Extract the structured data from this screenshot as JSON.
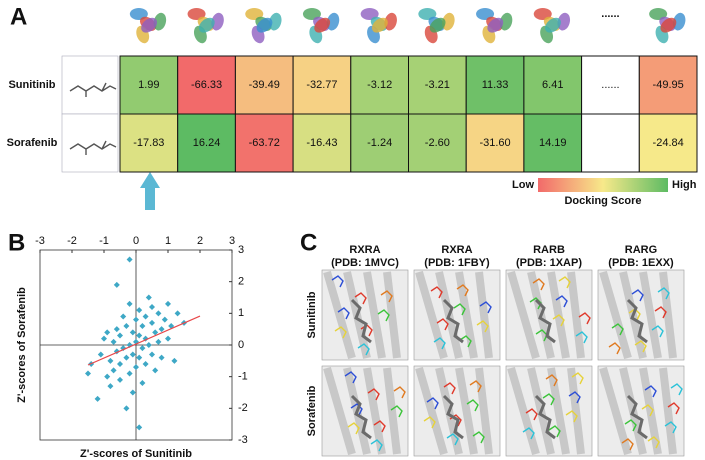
{
  "panel_a": {
    "label": "A",
    "columns_ellipsis": "......",
    "rows": [
      {
        "name": "Sunitinib",
        "cells": [
          "1.99",
          "-66.33",
          "-39.49",
          "-32.77",
          "-3.12",
          "-3.21",
          "11.33",
          "6.41",
          "......",
          "-49.95"
        ]
      },
      {
        "name": "Sorafenib",
        "cells": [
          "-17.83",
          "16.24",
          "-63.72",
          "-16.43",
          "-1.24",
          "-2.60",
          "-31.60",
          "14.19",
          "",
          "-24.84"
        ]
      }
    ],
    "legend": {
      "low": "Low",
      "high": "High",
      "title": "Docking Score"
    }
  },
  "chart_data": {
    "type": "scatter",
    "label": "B",
    "x_label": "Z'-scores of Sunitinib",
    "y_label": "Z'-scores of Sorafenib",
    "color": "#3ea8c6",
    "trend_color": "#e8474a",
    "xlim": [
      -3,
      3
    ],
    "ylim": [
      -3,
      3
    ],
    "xticks": [
      -3,
      -2,
      -1,
      0,
      1,
      2,
      3
    ],
    "yticks": [
      -3,
      -2,
      -1,
      0,
      1,
      2,
      3
    ],
    "x": [
      -1.5,
      -1.4,
      -1.2,
      -1.1,
      -1.0,
      -0.9,
      -0.9,
      -0.8,
      -0.8,
      -0.7,
      -0.7,
      -0.6,
      -0.6,
      -0.5,
      -0.5,
      -0.5,
      -0.4,
      -0.4,
      -0.3,
      -0.3,
      -0.3,
      -0.2,
      -0.2,
      -0.2,
      -0.1,
      -0.1,
      -0.1,
      0,
      0,
      0,
      0.1,
      0.1,
      0.1,
      0.2,
      0.2,
      0.2,
      0.3,
      0.3,
      0.3,
      0.4,
      0.4,
      0.5,
      0.5,
      0.5,
      0.6,
      0.6,
      0.7,
      0.7,
      0.8,
      0.8,
      0.9,
      1.0,
      1.0,
      1.1,
      1.2,
      1.3,
      1.5,
      -0.2,
      0.1,
      -0.6
    ],
    "values": [
      -0.9,
      -0.6,
      -1.7,
      -0.3,
      0.2,
      -1.0,
      0.4,
      -0.5,
      -1.3,
      0.1,
      -0.8,
      0.5,
      -0.2,
      -1.1,
      0.3,
      -0.6,
      0.9,
      -0.1,
      -2.0,
      0.6,
      -0.4,
      1.3,
      0,
      -0.9,
      0.4,
      -0.3,
      -1.5,
      0.8,
      0.1,
      -0.7,
      1.1,
      0.3,
      -0.4,
      0.6,
      -0.1,
      -1.2,
      0.9,
      0.2,
      -0.6,
      1.5,
      0,
      0.7,
      -0.3,
      1.2,
      0.4,
      -0.8,
      1.0,
      0.1,
      0.5,
      -0.4,
      0.8,
      1.3,
      0.2,
      0.6,
      -0.5,
      1.0,
      0.7,
      2.7,
      -2.6,
      1.9
    ]
  },
  "panel_c": {
    "label": "C",
    "columns": [
      {
        "gene": "RXRA",
        "pdb": "(PDB: 1MVC)"
      },
      {
        "gene": "RXRA",
        "pdb": "(PDB: 1FBY)"
      },
      {
        "gene": "RARB",
        "pdb": "(PDB: 1XAP)"
      },
      {
        "gene": "RARG",
        "pdb": "(PDB: 1EXX)"
      }
    ],
    "rows": [
      "Sunitinib",
      "Sorafenib"
    ]
  }
}
